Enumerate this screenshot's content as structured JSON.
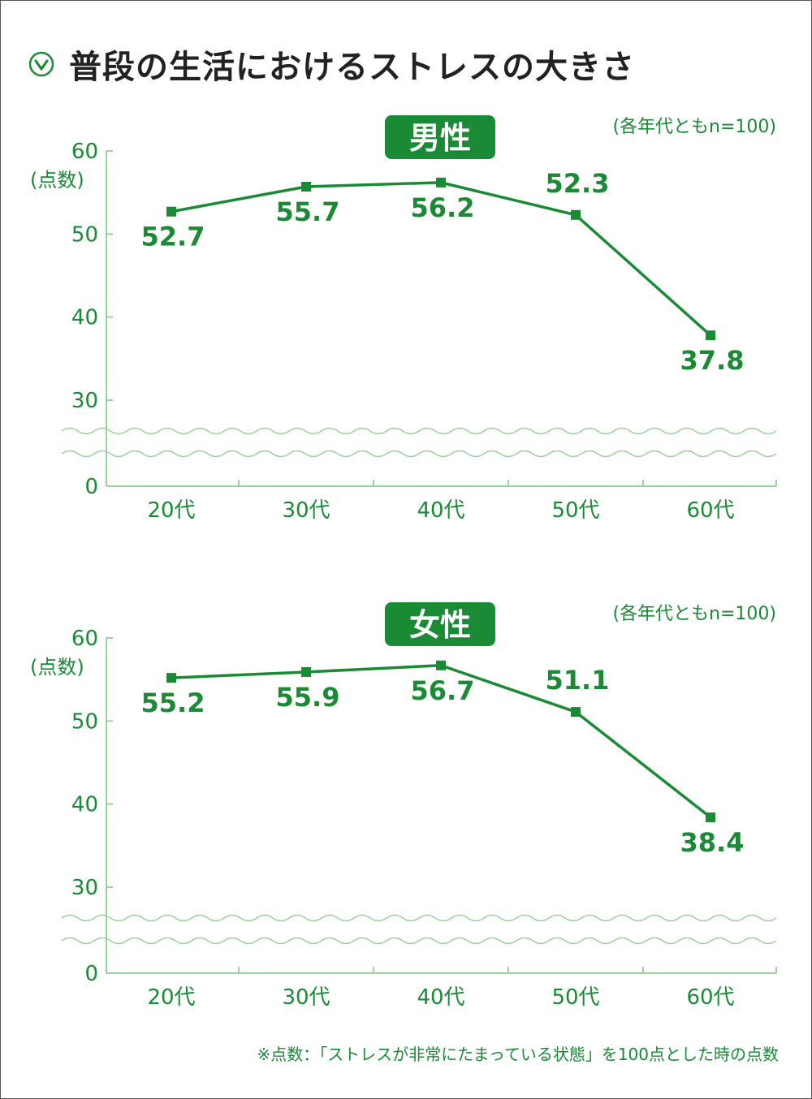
{
  "title": "普段の生活におけるストレスの大きさ",
  "icon": "chevron-down-circle-icon",
  "colors": {
    "accent": "#1a8a35",
    "axis": "#9bd19b",
    "title": "#222222"
  },
  "footnote": "※点数：「ストレスが非常にたまっている状態」を100点とした時の点数",
  "chart_data": [
    {
      "type": "line",
      "title": "男性",
      "sample_note": "(各年代ともn=100)",
      "ylabel": "(点数)",
      "categories": [
        "20代",
        "30代",
        "40代",
        "50代",
        "60代"
      ],
      "values": [
        52.7,
        55.7,
        56.2,
        52.3,
        37.8
      ],
      "value_labels": [
        "52.7",
        "55.7",
        "56.2",
        "52.3",
        "37.8"
      ],
      "yticks": [
        0,
        30,
        40,
        50,
        60
      ],
      "ylim": [
        0,
        60
      ],
      "axis_break": true
    },
    {
      "type": "line",
      "title": "女性",
      "sample_note": "(各年代ともn=100)",
      "ylabel": "(点数)",
      "categories": [
        "20代",
        "30代",
        "40代",
        "50代",
        "60代"
      ],
      "values": [
        55.2,
        55.9,
        56.7,
        51.1,
        38.4
      ],
      "value_labels": [
        "55.2",
        "55.9",
        "56.7",
        "51.1",
        "38.4"
      ],
      "yticks": [
        0,
        30,
        40,
        50,
        60
      ],
      "ylim": [
        0,
        60
      ],
      "axis_break": true
    }
  ]
}
